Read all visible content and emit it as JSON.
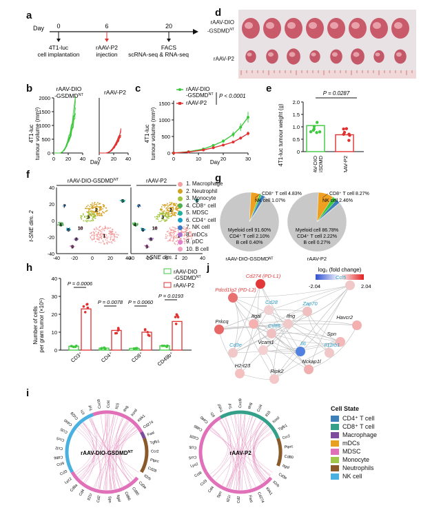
{
  "panels": {
    "a": {
      "label": "a",
      "day_word": "Day",
      "ticks": [
        "0",
        "6",
        "20"
      ],
      "events": [
        "4T1-luc",
        "cell implantation",
        "rAAV-P2",
        "injection",
        "FACS",
        "scRNA-seq & RNA-seq"
      ]
    },
    "b": {
      "label": "b",
      "titles": [
        "rAAV-DIO",
        "-GSDMD",
        "NT",
        "rAAV-P2"
      ],
      "ylabel": [
        "4T1-luc",
        "tumour volume (mm³)"
      ],
      "xlabel": "Day",
      "yticks": [
        "0",
        "500",
        "1000",
        "1500",
        "2000"
      ],
      "xticks": [
        "0",
        "20",
        "40",
        "0",
        "20",
        "40"
      ]
    },
    "c": {
      "label": "c",
      "legend": [
        "rAAV-DIO",
        "-GSDMD",
        "NT",
        "rAAV-P2"
      ],
      "pvalue": "P < 0.0001",
      "ylabel": [
        "4T1-luc",
        "tumour volume (mm³)"
      ],
      "xlabel": "Day",
      "yticks": [
        "0",
        "500",
        "1000",
        "1500"
      ],
      "xticks": [
        "0",
        "10",
        "20",
        "30"
      ]
    },
    "d": {
      "label": "d",
      "row_labels": [
        "rAAV-DIO",
        "-GSDMD",
        "NT",
        "rAAV-P2"
      ]
    },
    "e": {
      "label": "e",
      "pvalue": "P = 0.0287",
      "ylabel": "4T1-luc tumour weight (g)",
      "yticks": [
        "0",
        "0.5",
        "1.0",
        "1.5",
        "2.0"
      ],
      "xticks": [
        "rAAV-DIO",
        "-GSDMD",
        "NT",
        "rAAV-P2"
      ]
    },
    "f": {
      "label": "f",
      "titles": [
        "rAAV-DIO-GSDMD",
        "NT",
        "rAAV-P2"
      ],
      "ylabel": "t-SNE dim. 2",
      "xlabel": "t-SNE dim. 1",
      "xticks": [
        "-40",
        "-20",
        "0",
        "20",
        "40"
      ],
      "yticks": [
        "40",
        "20",
        "0",
        "-20",
        "-40"
      ],
      "clusters": [
        "1. Macrophage",
        "2. Neutrophil",
        "3. Monocyte",
        "4. CD8⁺ cell",
        "5. MDSC",
        "6. CD4⁺ cell",
        "7. NK cell",
        "8. mDCs",
        "9. pDC",
        "10. B cell"
      ],
      "cluster_numbers": [
        "1",
        "2",
        "3",
        "4",
        "5",
        "6",
        "7",
        "8",
        "9",
        "10"
      ],
      "cluster_colors": [
        "#f4a0a0",
        "#d4a020",
        "#a0c43a",
        "#4caf50",
        "#20b0a0",
        "#1aa0c8",
        "#3a78c8",
        "#b070d0",
        "#e080c8",
        "#f0a0c0"
      ]
    },
    "g": {
      "label": "g",
      "left": {
        "title": "rAAV-DIO-GSDMDᴺᵀ",
        "title_plain": "rAAV-DIO-GSDMD",
        "cd8": "CD8⁺ T cell 4.83%",
        "nk": "NK cell 1.07%",
        "myeloid": "Myeloid cell 91.60%",
        "cd4": "CD4⁺ T cell 2.10%",
        "b": "B cell 0.40%"
      },
      "right": {
        "title": "rAAV-P2",
        "cd8": "CD8⁺ T cell 8.27%",
        "nk": "NK cell 2.46%",
        "myeloid": "Myeloid cell 86.78%",
        "cd4": "CD4⁺ T cell 2.22%",
        "b": "B cell 0.27%"
      }
    },
    "h": {
      "label": "h",
      "ylabel": [
        "Number of cells",
        "per gram tumor (×10⁵)"
      ],
      "yticks": [
        "0",
        "10",
        "20",
        "30",
        "40"
      ],
      "categories": [
        "CD3⁺",
        "CD4⁺",
        "CD8⁺",
        "CD49b⁺"
      ],
      "pvalues": [
        "P = 0.0006",
        "P = 0.0078",
        "P = 0.0060",
        "P = 0.0193"
      ],
      "legend": [
        "rAAV-DIO",
        "-GSDMD",
        "NT",
        "rAAV-P2"
      ]
    },
    "j": {
      "label": "j",
      "legend_title": "log₂ (fold change)",
      "legend_min": "-2.04",
      "legend_max": "2.04",
      "genes": [
        "Cd274 (PD-L1)",
        "Pdcd1lg2 (PD-L2)",
        "Ccl5",
        "Cd28",
        "Zap70",
        "Itgal",
        "Ifng",
        "Havcr2",
        "Prkcq",
        "Cd86",
        "Spn",
        "Cd3e",
        "Vcam1",
        "Il6",
        "Il12rb1",
        "H2-t23",
        "Nckap1l",
        "Ripk2"
      ]
    },
    "i": {
      "label": "i",
      "left_title": "rAAV-DIO-GSDMD",
      "left_sup": "NT",
      "right_title": "rAAV-P2",
      "legend_title": "Cell State",
      "states": [
        "CD4⁺ T cell",
        "CD8⁺ T cell",
        "Macrophage",
        "mDCs",
        "MDSC",
        "Monocyte",
        "Neutrophils",
        "NK cell"
      ],
      "state_colors": [
        "#3d7fb8",
        "#35a089",
        "#7e4c9c",
        "#e8a020",
        "#e070b8",
        "#a0c84a",
        "#8b5a2b",
        "#4ab0e0"
      ],
      "left_genes": [
        "Cd86",
        "Ccl2",
        "Ccr5",
        "Ccl5",
        "Cd40",
        "Cd28",
        "Il7r",
        "Tnf",
        "Cxcl9",
        "Ccl4",
        "Il15",
        "Ifng",
        "Icosl",
        "Klrk1",
        "Cd274",
        "Fasl",
        "Tgfb1",
        "Ccr2",
        "Ptprc",
        "Cd28",
        "Il2rb",
        "Cd3e",
        "Cd80",
        "Cd86",
        "Itgal",
        "Spn",
        "Cd2",
        "Il21r",
        "Cd4",
        "Cd8a",
        "Lyz2",
        "Ccl3",
        "Ccl9"
      ],
      "right_genes": [
        "Ccr5",
        "Ccl5",
        "Cd28",
        "Cd86",
        "Cd40",
        "Il7r",
        "Tnfsf",
        "Tnf",
        "Cxcl9",
        "Ifng",
        "Ccl4",
        "Il15",
        "Icosl",
        "Tgfb1",
        "Ccr2",
        "Ptprc",
        "Cd80",
        "Itgal",
        "Cd3e",
        "Il2rb",
        "Klrk1",
        "Cd274",
        "Fasl",
        "Cd2",
        "Il21r",
        "Spn",
        "Cd4",
        "Ccl3",
        "Ccl9",
        "Lyz2"
      ]
    }
  }
}
